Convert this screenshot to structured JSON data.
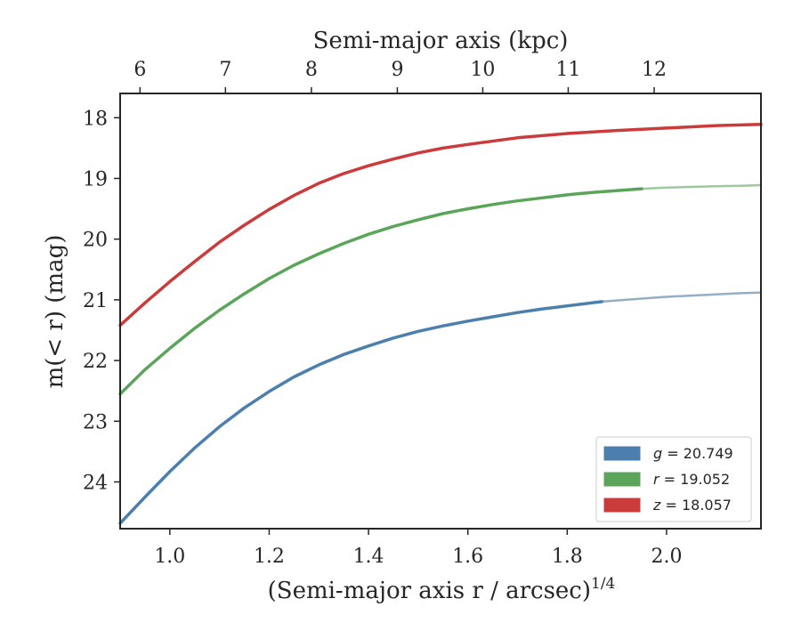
{
  "chart_data": {
    "type": "line",
    "xlabel": "(Semi-major axis r / arcsec)",
    "xlabel_superscript": "1/4",
    "x2label": "Semi-major axis (kpc)",
    "ylabel": "m(< r) (mag)",
    "xlim": [
      0.9,
      2.19
    ],
    "ylim": [
      24.77,
      17.6
    ],
    "y_inverted": true,
    "grid": false,
    "legend_position": "bottom-right",
    "x_ticks": [
      1.0,
      1.2,
      1.4,
      1.6,
      1.8,
      2.0
    ],
    "x_tick_labels": [
      "1.0",
      "1.2",
      "1.4",
      "1.6",
      "1.8",
      "2.0"
    ],
    "y_ticks": [
      18,
      19,
      20,
      21,
      22,
      23,
      24
    ],
    "y_tick_labels": [
      "18",
      "19",
      "20",
      "21",
      "22",
      "23",
      "24"
    ],
    "x2_ticks": [
      6,
      7,
      8,
      9,
      10,
      11,
      12
    ],
    "x2_tick_labels": [
      "6",
      "7",
      "8",
      "9",
      "10",
      "11",
      "12"
    ],
    "x2_tick_positions_x": [
      0.94,
      1.112,
      1.285,
      1.458,
      1.63,
      1.802,
      1.975
    ],
    "series": [
      {
        "name": "g = 20.749",
        "band": "g",
        "total": "20.749",
        "color": "#4c7fad",
        "extrap_color": "#94afc4",
        "measured": [
          [
            0.9,
            24.68
          ],
          [
            0.95,
            24.25
          ],
          [
            1.0,
            23.83
          ],
          [
            1.05,
            23.44
          ],
          [
            1.1,
            23.09
          ],
          [
            1.15,
            22.78
          ],
          [
            1.2,
            22.51
          ],
          [
            1.25,
            22.27
          ],
          [
            1.3,
            22.07
          ],
          [
            1.35,
            21.9
          ],
          [
            1.4,
            21.76
          ],
          [
            1.45,
            21.63
          ],
          [
            1.5,
            21.52
          ],
          [
            1.55,
            21.43
          ],
          [
            1.6,
            21.35
          ],
          [
            1.65,
            21.28
          ],
          [
            1.7,
            21.21
          ],
          [
            1.75,
            21.15
          ],
          [
            1.8,
            21.1
          ],
          [
            1.87,
            21.03
          ]
        ],
        "extrapolated": [
          [
            1.87,
            21.03
          ],
          [
            1.95,
            20.98
          ],
          [
            2.0,
            20.95
          ],
          [
            2.05,
            20.93
          ],
          [
            2.1,
            20.91
          ],
          [
            2.15,
            20.89
          ],
          [
            2.19,
            20.88
          ]
        ]
      },
      {
        "name": "r = 19.052",
        "band": "r",
        "total": "19.052",
        "color": "#5aa55a",
        "extrap_color": "#9ec89e",
        "measured": [
          [
            0.9,
            22.55
          ],
          [
            0.95,
            22.15
          ],
          [
            1.0,
            21.8
          ],
          [
            1.05,
            21.47
          ],
          [
            1.1,
            21.17
          ],
          [
            1.15,
            20.9
          ],
          [
            1.2,
            20.65
          ],
          [
            1.25,
            20.43
          ],
          [
            1.3,
            20.24
          ],
          [
            1.35,
            20.07
          ],
          [
            1.4,
            19.92
          ],
          [
            1.45,
            19.79
          ],
          [
            1.5,
            19.68
          ],
          [
            1.55,
            19.58
          ],
          [
            1.6,
            19.5
          ],
          [
            1.65,
            19.43
          ],
          [
            1.7,
            19.37
          ],
          [
            1.75,
            19.32
          ],
          [
            1.8,
            19.27
          ],
          [
            1.85,
            19.23
          ],
          [
            1.95,
            19.17
          ]
        ],
        "extrapolated": [
          [
            1.95,
            19.17
          ],
          [
            2.0,
            19.15
          ],
          [
            2.05,
            19.14
          ],
          [
            2.1,
            19.13
          ],
          [
            2.15,
            19.12
          ],
          [
            2.19,
            19.11
          ]
        ]
      },
      {
        "name": "z = 18.057",
        "band": "z",
        "total": "18.057",
        "color": "#cc3b3b",
        "extrap_color": "#cc3b3b",
        "measured": [
          [
            0.9,
            21.42
          ],
          [
            0.95,
            21.05
          ],
          [
            1.0,
            20.7
          ],
          [
            1.05,
            20.37
          ],
          [
            1.1,
            20.05
          ],
          [
            1.15,
            19.77
          ],
          [
            1.2,
            19.51
          ],
          [
            1.25,
            19.28
          ],
          [
            1.3,
            19.08
          ],
          [
            1.35,
            18.92
          ],
          [
            1.4,
            18.79
          ],
          [
            1.45,
            18.68
          ],
          [
            1.5,
            18.58
          ],
          [
            1.55,
            18.5
          ],
          [
            1.6,
            18.44
          ],
          [
            1.7,
            18.33
          ],
          [
            1.8,
            18.26
          ],
          [
            1.9,
            18.21
          ],
          [
            2.0,
            18.17
          ],
          [
            2.1,
            18.13
          ],
          [
            2.19,
            18.11
          ]
        ],
        "extrapolated": []
      }
    ]
  }
}
